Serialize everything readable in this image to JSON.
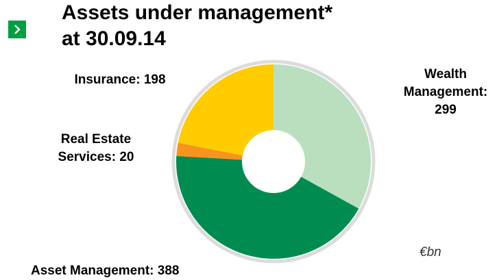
{
  "chart_data": {
    "type": "pie",
    "title": "Assets under management* at 30.09.14",
    "note": "€bn",
    "values": [
      299,
      388,
      20,
      198
    ],
    "value_labels": [
      "Wealth Management: 299",
      "Asset Management: 388",
      "Real Estate Services: 20",
      "Insurance: 198"
    ],
    "colors": [
      "#b9dfbf",
      "#008c50",
      "#f7941d",
      "#ffcc00"
    ]
  }
}
